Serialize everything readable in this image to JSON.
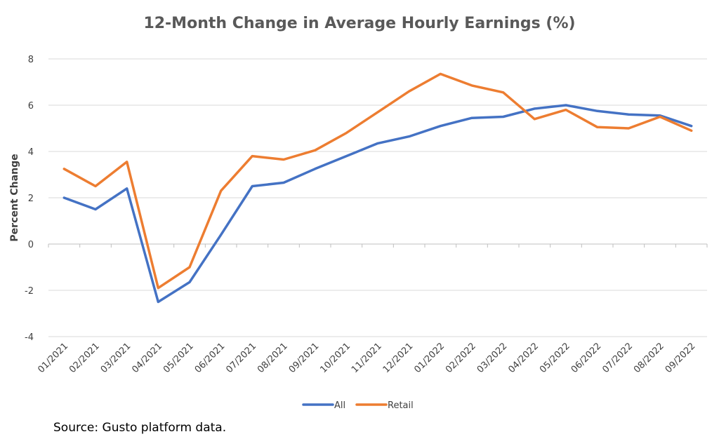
{
  "chart_data": {
    "type": "line",
    "title": "12-Month Change in Average Hourly Earnings (%)",
    "xlabel": "",
    "ylabel": "Percent Change",
    "ylim": [
      -4,
      8
    ],
    "yticks": [
      -4,
      -2,
      0,
      2,
      4,
      6,
      8
    ],
    "grid": true,
    "legend_position": "bottom",
    "categories": [
      "01/2021",
      "02/2021",
      "03/2021",
      "04/2021",
      "05/2021",
      "06/2021",
      "07/2021",
      "08/2021",
      "09/2021",
      "10/2021",
      "11/2021",
      "12/2021",
      "01/2022",
      "02/2022",
      "03/2022",
      "04/2022",
      "05/2022",
      "06/2022",
      "07/2022",
      "08/2022",
      "09/2022"
    ],
    "series": [
      {
        "name": "All",
        "color": "#4472C4",
        "values": [
          2.0,
          1.5,
          2.4,
          -2.5,
          -1.65,
          0.4,
          2.5,
          2.65,
          3.25,
          3.8,
          4.35,
          4.65,
          5.1,
          5.45,
          5.5,
          5.85,
          6.0,
          5.75,
          5.6,
          5.55,
          5.1
        ]
      },
      {
        "name": "Retail",
        "color": "#ED7D31",
        "values": [
          3.25,
          2.5,
          3.55,
          -1.9,
          -1.0,
          2.3,
          3.8,
          3.65,
          4.05,
          4.8,
          5.7,
          6.6,
          7.35,
          6.85,
          6.55,
          5.4,
          5.8,
          5.05,
          5.0,
          5.5,
          4.9
        ]
      }
    ]
  },
  "source": "Source: Gusto platform data.",
  "colors": {
    "grid": "#D9D9D9",
    "axis": "#BFBFBF"
  }
}
